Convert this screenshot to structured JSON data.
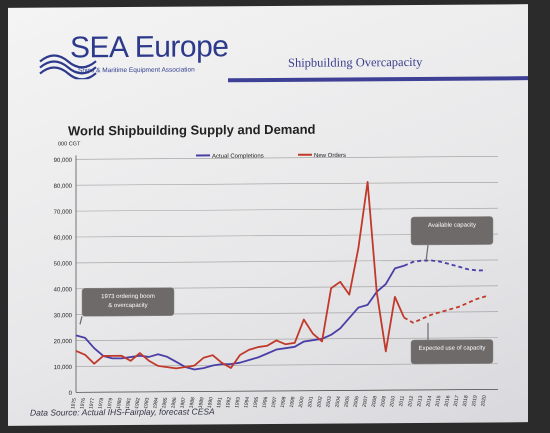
{
  "slide": {
    "logo_text": "SEA Europe",
    "logo_subtitle": "Ships & Maritime Equipment Association",
    "header_title": "Shipbuilding Overcapacity",
    "source_note": "Data Source: Actual IHS-Fairplay, forecast CESA"
  },
  "colors": {
    "completions": "#4a3fa6",
    "orders": "#c0392b",
    "header_bar": "#3e4096",
    "callout": "#6e6a6a"
  },
  "chart_data": {
    "type": "line",
    "title": "World Shipbuilding Supply and Demand",
    "ylabel": "000 CGT",
    "xlabel": "",
    "ylim": [
      0,
      90000
    ],
    "yticks": [
      0,
      10000,
      20000,
      30000,
      40000,
      50000,
      60000,
      70000,
      80000,
      90000
    ],
    "ytick_labels": [
      "0",
      "10,000",
      "20,000",
      "30,000",
      "40,000",
      "50,000",
      "60,000",
      "70,000",
      "80,000",
      "90,000"
    ],
    "x_labels": [
      "1975",
      "1976",
      "1977",
      "1978",
      "1979",
      "1980",
      "1981",
      "1982",
      "1983",
      "1984",
      "1985",
      "1986",
      "1987",
      "1988",
      "1989",
      "1990",
      "1991",
      "1992",
      "1993",
      "1994",
      "1995",
      "1996",
      "1997",
      "1998",
      "1999",
      "2000",
      "2001",
      "2002",
      "2003",
      "2004",
      "2005",
      "2006",
      "2007",
      "2008",
      "2009",
      "2010",
      "2011",
      "2012",
      "2013",
      "2014",
      "2015",
      "2016",
      "2017",
      "2018",
      "2019",
      "2020"
    ],
    "grid": true,
    "legend_position": "top-center",
    "series": [
      {
        "name": "Actual Completions",
        "color": "#4a3fa6",
        "x": [
          1975,
          1976,
          1977,
          1978,
          1979,
          1980,
          1981,
          1982,
          1983,
          1984,
          1985,
          1986,
          1987,
          1988,
          1989,
          1990,
          1991,
          1992,
          1993,
          1994,
          1995,
          1996,
          1997,
          1998,
          1999,
          2000,
          2001,
          2002,
          2003,
          2004,
          2005,
          2006,
          2007,
          2008,
          2009,
          2010,
          2011
        ],
        "values": [
          22000,
          21000,
          17000,
          14000,
          13000,
          13000,
          13500,
          14000,
          13500,
          14500,
          13500,
          11500,
          9500,
          8500,
          9000,
          10000,
          10500,
          10500,
          11000,
          12000,
          13000,
          14500,
          16000,
          16500,
          17000,
          19000,
          19500,
          20000,
          21500,
          24000,
          28000,
          32000,
          33000,
          38000,
          41000,
          47000,
          48000
        ]
      },
      {
        "name": "New Orders",
        "color": "#c0392b",
        "x": [
          1975,
          1976,
          1977,
          1978,
          1979,
          1980,
          1981,
          1982,
          1983,
          1984,
          1985,
          1986,
          1987,
          1988,
          1989,
          1990,
          1991,
          1992,
          1993,
          1994,
          1995,
          1996,
          1997,
          1998,
          1999,
          2000,
          2001,
          2002,
          2003,
          2004,
          2005,
          2006,
          2007,
          2008,
          2009,
          2010,
          2011
        ],
        "values": [
          16000,
          14500,
          11000,
          14000,
          14000,
          14000,
          12000,
          15000,
          12000,
          10000,
          9500,
          9000,
          9500,
          10000,
          13000,
          14000,
          11000,
          9000,
          14000,
          16000,
          17000,
          17500,
          19500,
          18000,
          18500,
          27500,
          22000,
          19000,
          39500,
          42000,
          37000,
          55000,
          80500,
          38000,
          15000,
          36000,
          28000
        ]
      },
      {
        "name": "",
        "style": "dashed",
        "color": "#4a3fa6",
        "x": [
          2011,
          2012,
          2013,
          2014,
          2015,
          2016,
          2017,
          2018,
          2019,
          2020
        ],
        "values": [
          48000,
          49500,
          50000,
          50000,
          49500,
          48500,
          47500,
          46500,
          46000,
          46000
        ]
      },
      {
        "name": "",
        "style": "dashed",
        "color": "#c0392b",
        "x": [
          2011,
          2012,
          2013,
          2014,
          2015,
          2016,
          2017,
          2018,
          2019,
          2020
        ],
        "values": [
          28000,
          26000,
          27500,
          29000,
          30000,
          31000,
          32000,
          33500,
          35000,
          36000
        ]
      }
    ],
    "annotations": [
      {
        "text": "1973 ordering boom & overcapacity"
      },
      {
        "text": "Available capacity"
      },
      {
        "text": "Expected use of capacity"
      }
    ]
  }
}
